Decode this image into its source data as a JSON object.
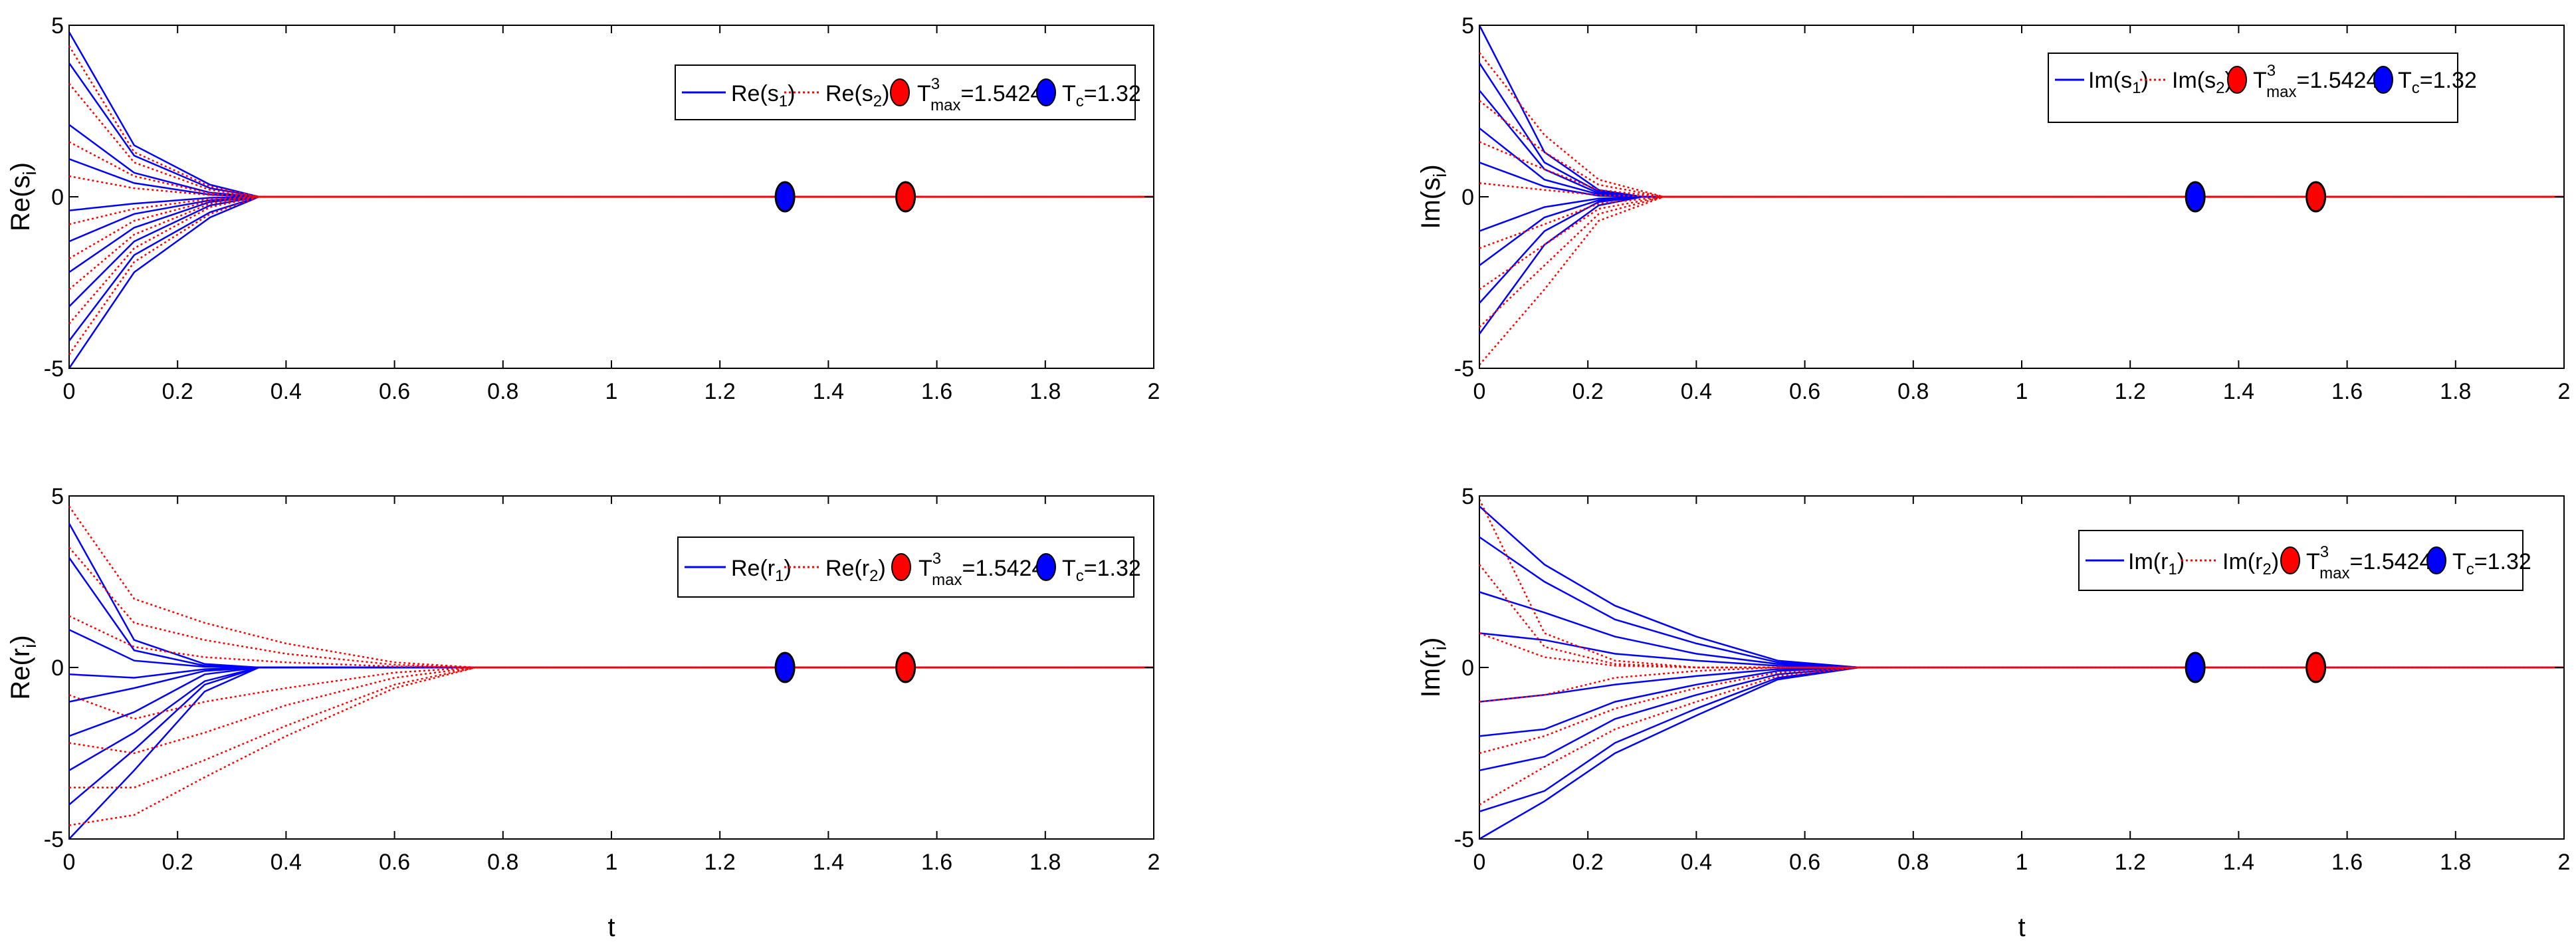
{
  "chart_data": [
    {
      "id": "re-s",
      "type": "line",
      "ylabel": "Re(s",
      "ylabel_sub": "i",
      "xlabel": "",
      "xlim": [
        0,
        2
      ],
      "ylim": [
        -5,
        5
      ],
      "x_ticks": [
        "0",
        "0.2",
        "0.4",
        "0.6",
        "0.8",
        "1",
        "1.2",
        "1.4",
        "1.6",
        "1.8",
        "2"
      ],
      "y_ticks": [
        "-5",
        "0",
        "5"
      ],
      "legend": [
        {
          "label": "Re(s",
          "sub": "1",
          "suffix": ")",
          "style": "solid",
          "color": "#0000ff"
        },
        {
          "label": "Re(s",
          "sub": "2",
          "suffix": ")",
          "style": "dotted",
          "color": "#ff0000"
        },
        {
          "label": "T",
          "sup": "3",
          "sub": "max",
          "suffix": "=1.5424",
          "marker": "#ff0000"
        },
        {
          "label": "T",
          "sub": "c",
          "suffix": "=1.32",
          "marker": "#0000ff"
        }
      ],
      "markers": [
        {
          "x": 1.32,
          "y": 0,
          "color": "#0000ff"
        },
        {
          "x": 1.5424,
          "y": 0,
          "color": "#ff0000"
        }
      ],
      "series": [
        {
          "name": "Re(s1)",
          "color": "#0000ff",
          "style": "solid",
          "x": [
            0,
            0.12,
            0.26,
            0.35,
            2
          ],
          "values": [
            [
              4.8,
              1.5,
              0.35,
              0,
              0
            ],
            [
              3.9,
              1.2,
              0.25,
              0,
              0
            ],
            [
              2.1,
              0.7,
              0.12,
              0,
              0
            ],
            [
              1.1,
              0.4,
              0.06,
              0,
              0
            ],
            [
              -0.4,
              -0.2,
              -0.03,
              0,
              0
            ],
            [
              -1.3,
              -0.5,
              -0.1,
              0,
              0
            ],
            [
              -2.2,
              -0.9,
              -0.15,
              0,
              0
            ],
            [
              -3.2,
              -1.3,
              -0.25,
              0,
              0
            ],
            [
              -4.2,
              -1.7,
              -0.45,
              0,
              0
            ],
            [
              -5,
              -2.2,
              -0.6,
              0,
              0
            ]
          ]
        },
        {
          "name": "Re(s2)",
          "color": "#ff0000",
          "style": "dotted",
          "x": [
            0,
            0.12,
            0.26,
            0.35,
            2
          ],
          "values": [
            [
              4.4,
              1.3,
              0.3,
              0,
              0
            ],
            [
              3.3,
              1.0,
              0.2,
              0,
              0
            ],
            [
              1.6,
              0.6,
              0.1,
              0,
              0
            ],
            [
              0.6,
              0.25,
              0.05,
              0,
              0
            ],
            [
              -0.8,
              -0.35,
              -0.06,
              0,
              0
            ],
            [
              -1.8,
              -0.7,
              -0.12,
              0,
              0
            ],
            [
              -2.7,
              -1.1,
              -0.2,
              0,
              0
            ],
            [
              -3.7,
              -1.5,
              -0.3,
              0,
              0
            ],
            [
              -4.6,
              -1.9,
              -0.5,
              0,
              0
            ]
          ]
        }
      ]
    },
    {
      "id": "im-s",
      "type": "line",
      "ylabel": "Im(s",
      "ylabel_sub": "i",
      "xlabel": "",
      "xlim": [
        0,
        2
      ],
      "ylim": [
        -5,
        5
      ],
      "x_ticks": [
        "0",
        "0.2",
        "0.4",
        "0.6",
        "0.8",
        "1",
        "1.2",
        "1.4",
        "1.6",
        "1.8",
        "2"
      ],
      "y_ticks": [
        "-5",
        "0",
        "5"
      ],
      "legend": [
        {
          "label": "Im(s",
          "sub": "1",
          "suffix": ")",
          "style": "solid",
          "color": "#0000ff"
        },
        {
          "label": "Im(s",
          "sub": "2",
          "suffix": ")",
          "style": "dotted",
          "color": "#ff0000"
        },
        {
          "label": "T",
          "sup": "3",
          "sub": "max",
          "suffix": "=1.5424",
          "marker": "#ff0000"
        },
        {
          "label": "T",
          "sub": "c",
          "suffix": "=1.32",
          "marker": "#0000ff"
        }
      ],
      "markers": [
        {
          "x": 1.32,
          "y": 0,
          "color": "#0000ff"
        },
        {
          "x": 1.5424,
          "y": 0,
          "color": "#ff0000"
        }
      ],
      "series": [
        {
          "name": "Im(s1)",
          "color": "#0000ff",
          "style": "solid",
          "x": [
            0,
            0.12,
            0.22,
            0.3,
            2
          ],
          "values": [
            [
              5,
              1.3,
              0.2,
              0,
              0
            ],
            [
              3.9,
              1.0,
              0.15,
              0,
              0
            ],
            [
              3.1,
              0.8,
              0.1,
              0,
              0
            ],
            [
              2.0,
              0.5,
              0.07,
              0,
              0
            ],
            [
              1.0,
              0.3,
              0.03,
              0,
              0
            ],
            [
              -1.0,
              -0.3,
              -0.05,
              0,
              0
            ],
            [
              -2.0,
              -0.6,
              -0.1,
              0,
              0
            ],
            [
              -3.1,
              -1.0,
              -0.15,
              0,
              0
            ],
            [
              -4.0,
              -1.4,
              -0.25,
              0,
              0
            ]
          ]
        },
        {
          "name": "Im(s2)",
          "color": "#ff0000",
          "style": "dotted",
          "x": [
            0,
            0.12,
            0.22,
            0.34,
            2
          ],
          "values": [
            [
              4.2,
              1.8,
              0.5,
              0,
              0
            ],
            [
              2.8,
              1.3,
              0.35,
              0,
              0
            ],
            [
              1.6,
              0.8,
              0.2,
              0,
              0
            ],
            [
              0.4,
              0.2,
              0.05,
              0,
              0
            ],
            [
              -1.5,
              -0.8,
              -0.2,
              0,
              0
            ],
            [
              -2.7,
              -1.4,
              -0.35,
              0,
              0
            ],
            [
              -3.8,
              -2.0,
              -0.5,
              0,
              0
            ],
            [
              -4.9,
              -2.7,
              -0.7,
              0,
              0
            ]
          ]
        }
      ]
    },
    {
      "id": "re-r",
      "type": "line",
      "ylabel": "Re(r",
      "ylabel_sub": "i",
      "xlabel": "t",
      "xlim": [
        0,
        2
      ],
      "ylim": [
        -5,
        5
      ],
      "x_ticks": [
        "0",
        "0.2",
        "0.4",
        "0.6",
        "0.8",
        "1",
        "1.2",
        "1.4",
        "1.6",
        "1.8",
        "2"
      ],
      "y_ticks": [
        "-5",
        "0",
        "5"
      ],
      "legend": [
        {
          "label": "Re(r",
          "sub": "1",
          "suffix": ")",
          "style": "solid",
          "color": "#0000ff"
        },
        {
          "label": "Re(r",
          "sub": "2",
          "suffix": ")",
          "style": "dotted",
          "color": "#ff0000"
        },
        {
          "label": "T",
          "sup": "3",
          "sub": "max",
          "suffix": "=1.5424",
          "marker": "#ff0000"
        },
        {
          "label": "T",
          "sub": "c",
          "suffix": "=1.32",
          "marker": "#0000ff"
        }
      ],
      "markers": [
        {
          "x": 1.32,
          "y": 0,
          "color": "#0000ff"
        },
        {
          "x": 1.5424,
          "y": 0,
          "color": "#ff0000"
        }
      ],
      "series": [
        {
          "name": "Re(r1)",
          "color": "#0000ff",
          "style": "solid",
          "x": [
            0,
            0.12,
            0.25,
            0.35,
            2
          ],
          "values": [
            [
              4.2,
              0.8,
              0.1,
              0,
              0
            ],
            [
              3.2,
              0.5,
              0.05,
              0,
              0
            ],
            [
              1.1,
              0.2,
              0.02,
              0,
              0
            ],
            [
              -0.2,
              -0.3,
              -0.05,
              0,
              0
            ],
            [
              -1.0,
              -0.6,
              -0.1,
              0,
              0
            ],
            [
              -2.0,
              -1.3,
              -0.2,
              0,
              0
            ],
            [
              -3.0,
              -1.9,
              -0.4,
              0,
              0
            ],
            [
              -4.0,
              -2.4,
              -0.5,
              0,
              0
            ],
            [
              -5,
              -3.0,
              -0.7,
              0,
              0
            ]
          ]
        },
        {
          "name": "Re(r2)",
          "color": "#ff0000",
          "style": "dotted",
          "x": [
            0,
            0.12,
            0.25,
            0.4,
            0.6,
            0.75,
            2
          ],
          "values": [
            [
              4.7,
              2.0,
              1.3,
              0.7,
              0.15,
              0,
              0
            ],
            [
              3.5,
              1.3,
              0.8,
              0.4,
              0.08,
              0,
              0
            ],
            [
              1.5,
              0.6,
              0.3,
              0.15,
              0.03,
              0,
              0
            ],
            [
              -0.8,
              -1.5,
              -1.0,
              -0.6,
              -0.15,
              0,
              0
            ],
            [
              -2.2,
              -2.5,
              -1.9,
              -1.1,
              -0.3,
              0,
              0
            ],
            [
              -3.5,
              -3.5,
              -2.7,
              -1.7,
              -0.5,
              0,
              0
            ],
            [
              -4.6,
              -4.3,
              -3.2,
              -2.0,
              -0.6,
              0,
              0
            ]
          ]
        }
      ]
    },
    {
      "id": "im-r",
      "type": "line",
      "ylabel": "Im(r",
      "ylabel_sub": "i",
      "xlabel": "t",
      "xlim": [
        0,
        2
      ],
      "ylim": [
        -5,
        5
      ],
      "x_ticks": [
        "0",
        "0.2",
        "0.4",
        "0.6",
        "0.8",
        "1",
        "1.2",
        "1.4",
        "1.6",
        "1.8",
        "2"
      ],
      "y_ticks": [
        "-5",
        "0",
        "5"
      ],
      "legend": [
        {
          "label": "Im(r",
          "sub": "1",
          "suffix": ")",
          "style": "solid",
          "color": "#0000ff"
        },
        {
          "label": "Im(r",
          "sub": "2",
          "suffix": ")",
          "style": "dotted",
          "color": "#ff0000"
        },
        {
          "label": "T",
          "sup": "3",
          "sub": "max",
          "suffix": "=1.5424",
          "marker": "#ff0000"
        },
        {
          "label": "T",
          "sub": "c",
          "suffix": "=1.32",
          "marker": "#0000ff"
        }
      ],
      "markers": [
        {
          "x": 1.32,
          "y": 0,
          "color": "#0000ff"
        },
        {
          "x": 1.5424,
          "y": 0,
          "color": "#ff0000"
        }
      ],
      "series": [
        {
          "name": "Im(r1)",
          "color": "#0000ff",
          "style": "solid",
          "x": [
            0,
            0.12,
            0.25,
            0.4,
            0.55,
            0.7,
            2
          ],
          "values": [
            [
              4.7,
              3.0,
              1.8,
              0.9,
              0.2,
              0,
              0
            ],
            [
              3.8,
              2.5,
              1.4,
              0.7,
              0.15,
              0,
              0
            ],
            [
              2.2,
              1.6,
              0.9,
              0.4,
              0.1,
              0,
              0
            ],
            [
              1.0,
              0.8,
              0.4,
              0.2,
              0.05,
              0,
              0
            ],
            [
              -1.0,
              -0.8,
              -0.5,
              -0.25,
              -0.05,
              0,
              0
            ],
            [
              -2.0,
              -1.8,
              -1.0,
              -0.5,
              -0.1,
              0,
              0
            ],
            [
              -3.0,
              -2.6,
              -1.5,
              -0.8,
              -0.2,
              0,
              0
            ],
            [
              -4.2,
              -3.6,
              -2.2,
              -1.2,
              -0.3,
              0,
              0
            ],
            [
              -5,
              -3.9,
              -2.5,
              -1.4,
              -0.35,
              0,
              0
            ]
          ]
        },
        {
          "name": "Im(r2)",
          "color": "#ff0000",
          "style": "dotted",
          "x": [
            0,
            0.12,
            0.25,
            0.4,
            0.55,
            0.7,
            2
          ],
          "values": [
            [
              4.9,
              1.0,
              0.2,
              0,
              0,
              0,
              0
            ],
            [
              3.0,
              0.6,
              0.1,
              0,
              0,
              0,
              0
            ],
            [
              1.0,
              0.3,
              0.05,
              0,
              0,
              0,
              0
            ],
            [
              -1.0,
              -0.8,
              -0.3,
              -0.1,
              0,
              0,
              0
            ],
            [
              -2.5,
              -2.0,
              -1.2,
              -0.6,
              -0.15,
              0,
              0
            ],
            [
              -4.0,
              -2.9,
              -1.8,
              -1.0,
              -0.25,
              0,
              0
            ]
          ]
        }
      ]
    }
  ]
}
